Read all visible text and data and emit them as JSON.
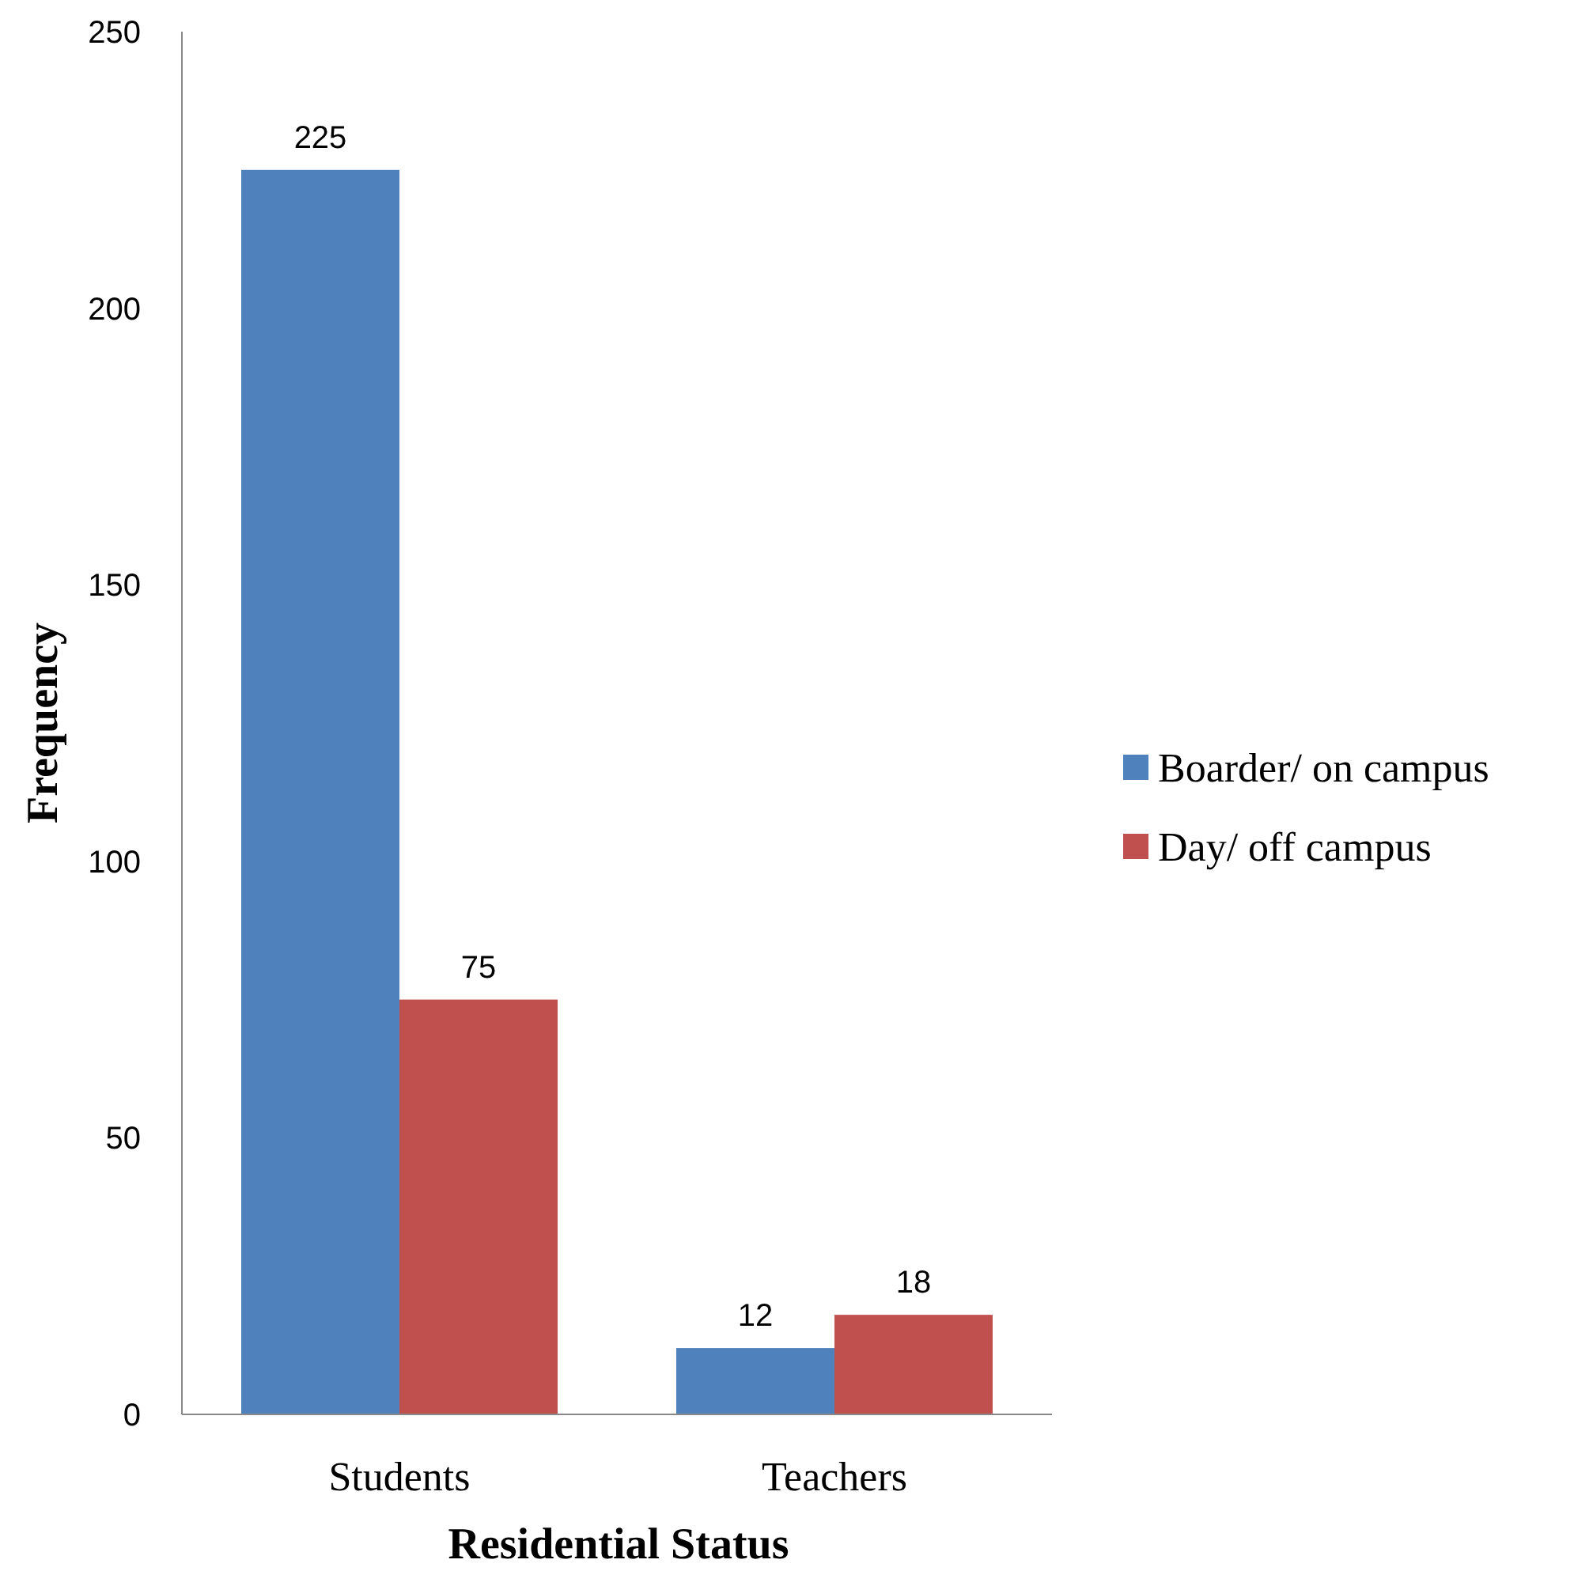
{
  "chart_data": {
    "type": "bar",
    "xlabel": "Residential Status",
    "ylabel": "Frequency",
    "categories": [
      "Students",
      "Teachers"
    ],
    "series": [
      {
        "name": "Boarder/ on campus",
        "color": "#4f81bd",
        "values": [
          225,
          12
        ]
      },
      {
        "name": "Day/ off campus",
        "color": "#c0504d",
        "values": [
          75,
          18
        ]
      }
    ],
    "ylim": [
      0,
      250
    ],
    "yticks": [
      0,
      50,
      100,
      150,
      200,
      250
    ],
    "grid": false,
    "legend": "right",
    "data_labels": true
  }
}
